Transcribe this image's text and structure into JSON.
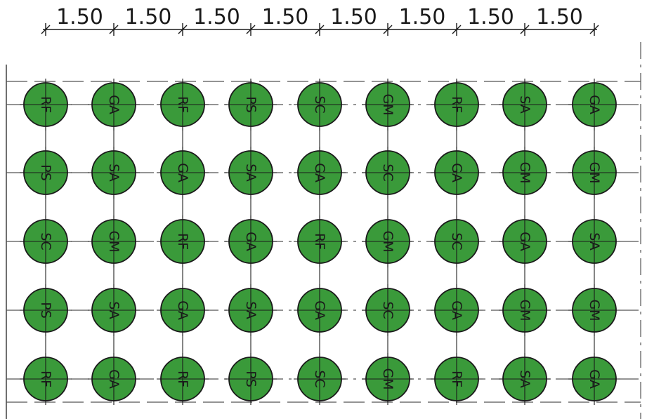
{
  "dimensions": [
    "1.50",
    "1.50",
    "1.50",
    "1.50",
    "1.50",
    "1.50",
    "1.50",
    "1.50"
  ],
  "grid": [
    [
      "RF",
      "GA",
      "RF",
      "PS",
      "SC",
      "GM",
      "RF",
      "SA",
      "GA"
    ],
    [
      "PS",
      "SA",
      "GA",
      "SA",
      "GA",
      "SC",
      "GA",
      "GM",
      "GM"
    ],
    [
      "SC",
      "GM",
      "RF",
      "GA",
      "RF",
      "GM",
      "SC",
      "GA",
      "SA"
    ],
    [
      "PS",
      "SA",
      "GA",
      "SA",
      "GA",
      "SC",
      "GA",
      "GM",
      "GM"
    ],
    [
      "RF",
      "GA",
      "RF",
      "PS",
      "SC",
      "GM",
      "RF",
      "SA",
      "GA"
    ]
  ],
  "colors": {
    "tree_fill": "#3a9a3a",
    "line": "#1a1a1a"
  }
}
